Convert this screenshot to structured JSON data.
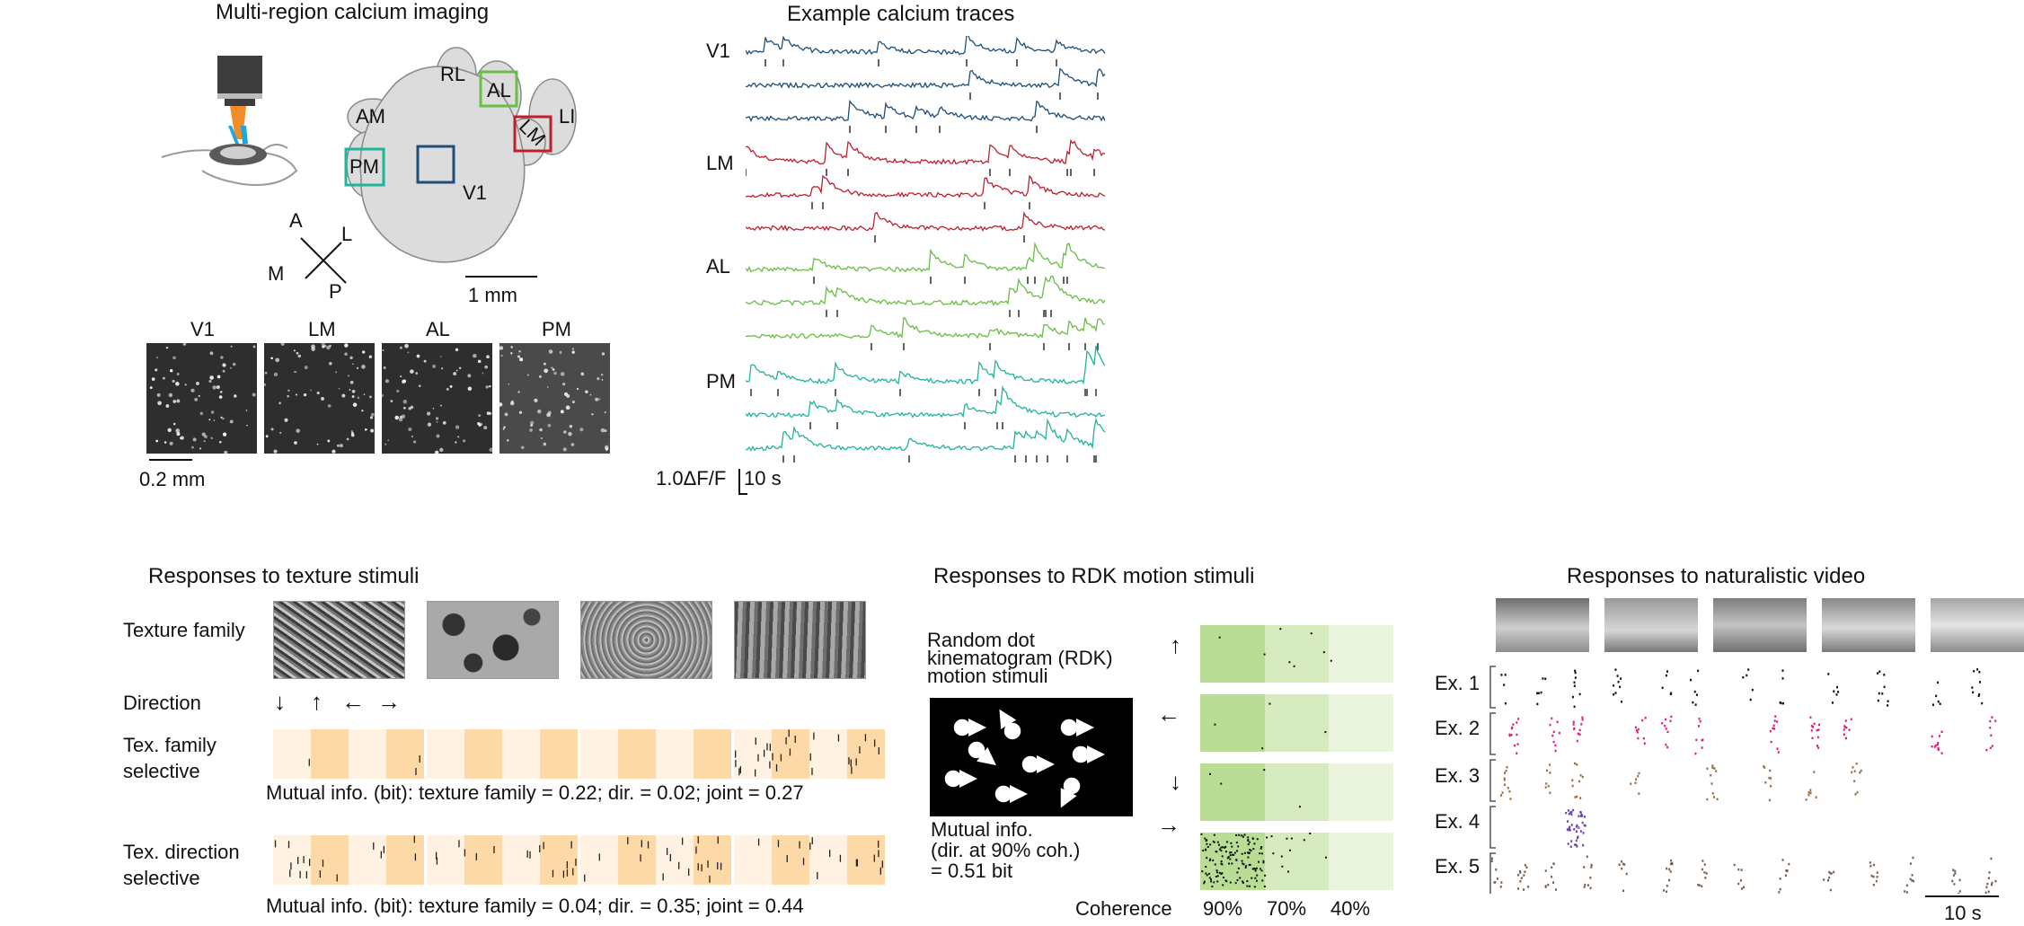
{
  "panelA": {
    "title": "Multi-region calcium imaging",
    "areas": [
      "RL",
      "AL",
      "AM",
      "LI",
      "LM",
      "PM",
      "V1"
    ],
    "axes": {
      "a": "A",
      "l": "L",
      "m": "M",
      "p": "P"
    },
    "scale_1mm": "1 mm",
    "fov_labels": [
      "V1",
      "LM",
      "AL",
      "PM"
    ],
    "scale_02mm": "0.2 mm",
    "colors": {
      "V1": "#1f4e79",
      "LM": "#c0202e",
      "AL": "#6abd45",
      "PM": "#1fb59a"
    }
  },
  "panelB": {
    "title": "Example calcium traces",
    "groups": [
      "V1",
      "LM",
      "AL",
      "PM"
    ],
    "scale_dff": "1.0ΔF/F",
    "scale_time": "10 s"
  },
  "panelC": {
    "title": "Responses to texture stimuli",
    "row_texture_family": "Texture family",
    "row_direction": "Direction",
    "direction_arrows": [
      "↓",
      "↑",
      "←",
      "→"
    ],
    "row_family_selective": [
      "Tex. family",
      "selective"
    ],
    "mi_family": "Mutual info. (bit): texture family = 0.22; dir. = 0.02; joint = 0.27",
    "row_direction_selective": [
      "Tex. direction",
      "selective"
    ],
    "mi_direction": "Mutual info. (bit): texture family = 0.04; dir. = 0.35; joint = 0.44"
  },
  "panelD": {
    "title": "Responses to RDK motion stimuli",
    "desc": [
      "Random dot",
      "kinematogram (RDK)",
      "motion stimuli"
    ],
    "mi": [
      "Mutual info.",
      "(dir. at 90% coh.)",
      "= 0.51 bit"
    ],
    "arrows": [
      "↑",
      "←",
      "↓",
      "→"
    ],
    "coherence_label": "Coherence",
    "coherence_levels": [
      "90%",
      "70%",
      "40%"
    ]
  },
  "panelE": {
    "title": "Responses to naturalistic video",
    "examples": [
      "Ex. 1",
      "Ex. 2",
      "Ex. 3",
      "Ex. 4",
      "Ex. 5"
    ],
    "example_colors": [
      "#111111",
      "#e0197d",
      "#9b6b3c",
      "#6a3fb5",
      "#7a5c47"
    ],
    "scale_time": "10 s"
  }
}
